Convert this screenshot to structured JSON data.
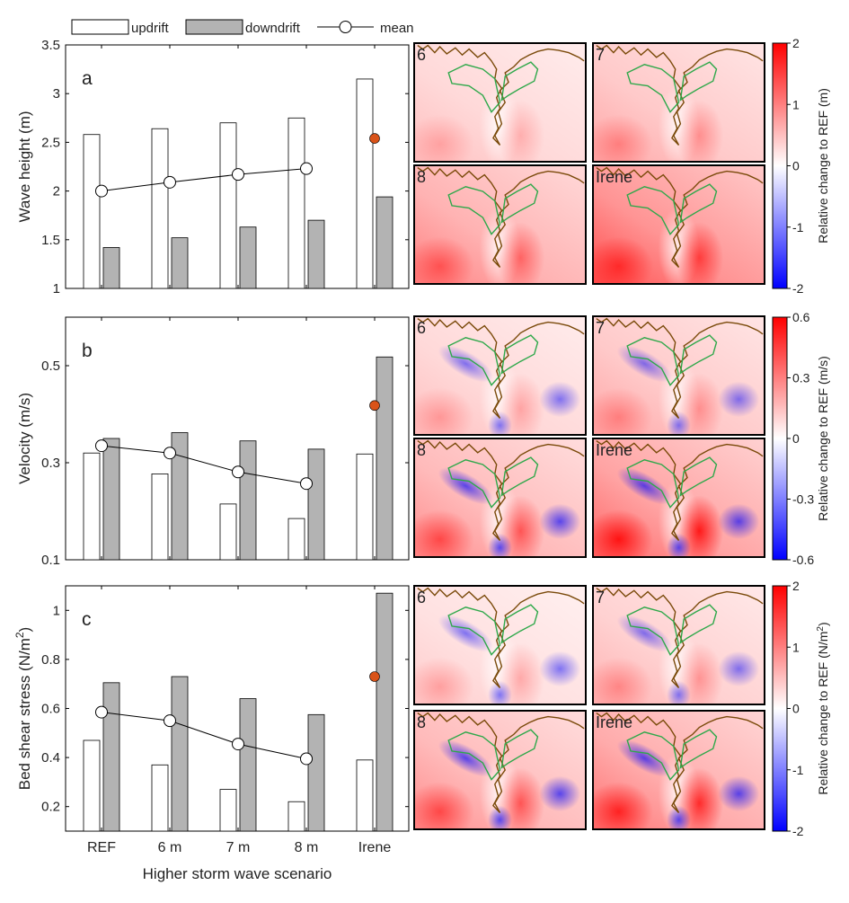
{
  "legend": {
    "updrift": "updrift",
    "downdrift": "downdrift",
    "mean": "mean"
  },
  "xlabel": "Higher storm wave scenario",
  "colors": {
    "updrift": "#ffffff",
    "downdrift": "#b3b3b3",
    "mean_marker": "#ffffff",
    "irene_marker": "#d95319",
    "map_contour": "#7a4a0a",
    "map_polygon": "#2ea84a",
    "cmap_negative": "#0000ff",
    "cmap_zero": "#ffffff",
    "cmap_positive": "#ff0000"
  },
  "chart_data": [
    {
      "type": "bar",
      "panel": "a",
      "categories": [
        "REF",
        "6 m",
        "7 m",
        "8 m",
        "Irene"
      ],
      "ylabel": "Wave height (m)",
      "ylim": [
        1,
        3.5
      ],
      "yticks": [
        1,
        1.5,
        2,
        2.5,
        3,
        3.5
      ],
      "series": [
        {
          "name": "updrift",
          "values": [
            2.58,
            2.64,
            2.7,
            2.75,
            3.15
          ]
        },
        {
          "name": "downdrift",
          "values": [
            1.42,
            1.52,
            1.63,
            1.7,
            1.94
          ]
        },
        {
          "name": "mean",
          "values": [
            2.0,
            2.09,
            2.17,
            2.23,
            2.54
          ]
        }
      ]
    },
    {
      "type": "bar",
      "panel": "b",
      "categories": [
        "REF",
        "6 m",
        "7 m",
        "8 m",
        "Irene"
      ],
      "ylabel": "Velocity (m/s)",
      "ylim": [
        0.1,
        0.6
      ],
      "yticks": [
        0.1,
        0.3,
        0.5
      ],
      "series": [
        {
          "name": "updrift",
          "values": [
            0.32,
            0.277,
            0.215,
            0.185,
            0.318
          ]
        },
        {
          "name": "downdrift",
          "values": [
            0.35,
            0.362,
            0.345,
            0.328,
            0.518
          ]
        },
        {
          "name": "mean",
          "values": [
            0.335,
            0.32,
            0.281,
            0.257,
            0.418
          ]
        }
      ]
    },
    {
      "type": "bar",
      "panel": "c",
      "categories": [
        "REF",
        "6 m",
        "7 m",
        "8 m",
        "Irene"
      ],
      "ylabel": "Bed shear stress (N/m",
      "ylabel_sup": "2",
      "ylabel_end": ")",
      "ylim": [
        0.1,
        1.1
      ],
      "yticks": [
        0.2,
        0.4,
        0.6,
        0.8,
        1
      ],
      "series": [
        {
          "name": "updrift",
          "values": [
            0.47,
            0.37,
            0.27,
            0.22,
            0.39
          ]
        },
        {
          "name": "downdrift",
          "values": [
            0.705,
            0.73,
            0.64,
            0.575,
            1.07
          ]
        },
        {
          "name": "mean",
          "values": [
            0.585,
            0.55,
            0.455,
            0.395,
            0.73
          ]
        }
      ]
    }
  ],
  "maps": {
    "rows": [
      {
        "panel": "a",
        "labels": [
          "6",
          "7",
          "8",
          "Irene"
        ],
        "colorbar": {
          "min": -2,
          "max": 2,
          "ticks": [
            "2",
            "1",
            "0",
            "-1",
            "-2"
          ],
          "label": "Relative change to REF (m)"
        }
      },
      {
        "panel": "b",
        "labels": [
          "6",
          "7",
          "8",
          "Irene"
        ],
        "colorbar": {
          "min": -0.6,
          "max": 0.6,
          "ticks": [
            "0.6",
            "0.3",
            "0",
            "-0.3",
            "-0.6"
          ],
          "label": "Relative change to REF (m/s)"
        }
      },
      {
        "panel": "c",
        "labels": [
          "6",
          "7",
          "8",
          "Irene"
        ],
        "colorbar": {
          "min": -2,
          "max": 2,
          "ticks": [
            "2",
            "1",
            "0",
            "-1",
            "-2"
          ],
          "label": "Relative change to REF (N/m",
          "label_sup": "2",
          "label_end": ")"
        }
      }
    ]
  }
}
